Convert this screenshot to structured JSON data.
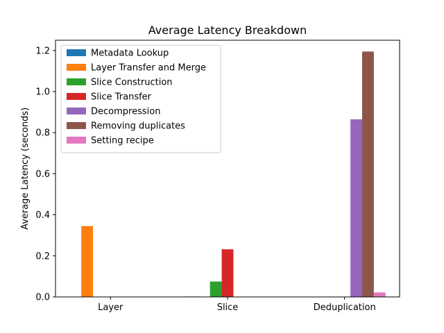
{
  "chart_data": {
    "type": "bar",
    "title": "Average Latency Breakdown",
    "xlabel": "",
    "ylabel": "Average Latency (seconds)",
    "categories": [
      "Layer",
      "Slice",
      "Deduplication"
    ],
    "ylim": [
      0,
      1.25
    ],
    "yticks": [
      0.0,
      0.2,
      0.4,
      0.6,
      0.8,
      1.0,
      1.2
    ],
    "ytick_labels": [
      "0.0",
      "0.2",
      "0.4",
      "0.6",
      "0.8",
      "1.0",
      "1.2"
    ],
    "grid": false,
    "legend_position": "upper-left",
    "series": [
      {
        "name": "Metadata Lookup",
        "color": "#1f77b4",
        "values": [
          0,
          0.002,
          0
        ]
      },
      {
        "name": "Layer Transfer and Merge",
        "color": "#ff7f0e",
        "values": [
          0.345,
          0,
          0
        ]
      },
      {
        "name": "Slice Construction",
        "color": "#2ca02c",
        "values": [
          0,
          0.075,
          0
        ]
      },
      {
        "name": "Slice Transfer",
        "color": "#d62728",
        "values": [
          0,
          0.232,
          0
        ]
      },
      {
        "name": "Decompression",
        "color": "#9467bd",
        "values": [
          0,
          0,
          0.865
        ]
      },
      {
        "name": "Removing duplicates",
        "color": "#8c564b",
        "values": [
          0,
          0,
          1.195
        ]
      },
      {
        "name": "Setting recipe",
        "color": "#e377c2",
        "values": [
          0,
          0,
          0.022
        ]
      }
    ]
  }
}
